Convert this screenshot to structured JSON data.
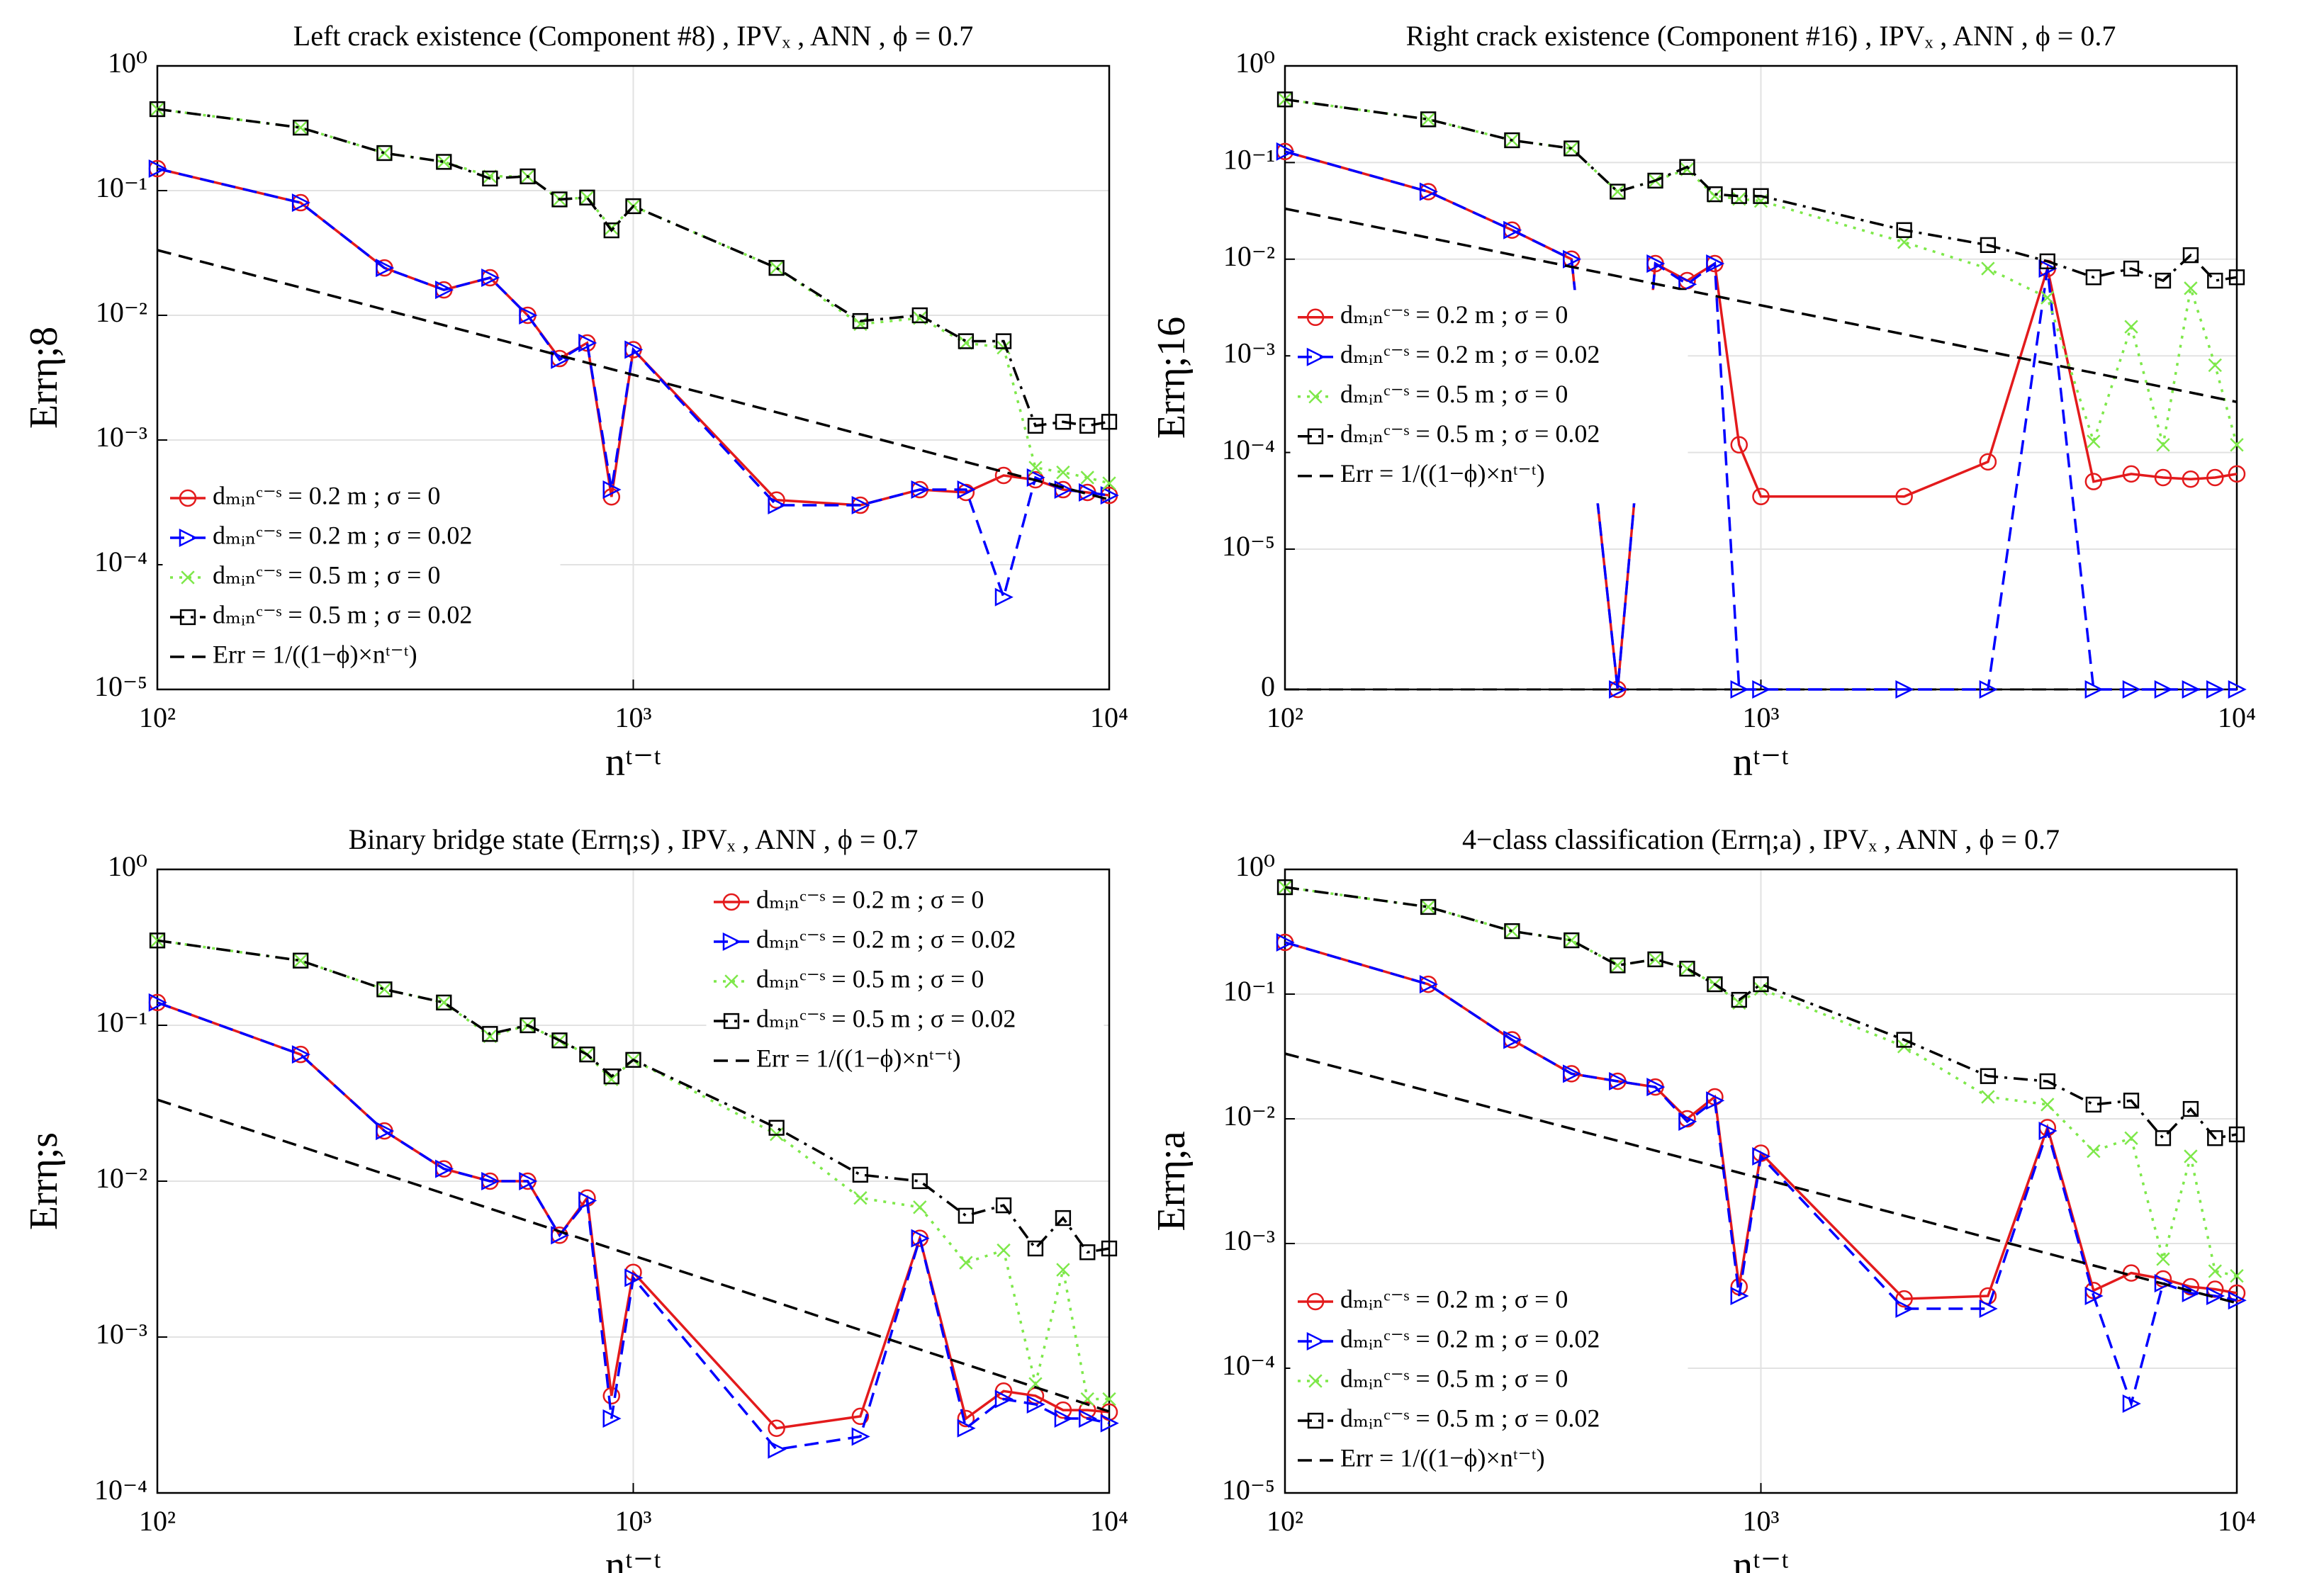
{
  "chart_data": [
    {
      "type": "line",
      "title": "Left crack existence (Component #8) , IPVₓ , ANN , ϕ = 0.7",
      "xlabel": "nᵗ⁻ᵗ",
      "ylabel": "Errη;8",
      "x": [
        100,
        200,
        300,
        400,
        500,
        600,
        700,
        800,
        900,
        1000,
        2000,
        3000,
        4000,
        5000,
        6000,
        7000,
        8000,
        9000,
        10000
      ],
      "xlim": [
        100,
        10000
      ],
      "xticks": [
        {
          "value": 100,
          "label": "10²"
        },
        {
          "value": 1000,
          "label": "10³"
        },
        {
          "value": 10000,
          "label": "10⁴"
        }
      ],
      "ylim": [
        1e-05,
        1
      ],
      "yticks": [
        {
          "value": 1e-05,
          "label": "10⁻⁵"
        },
        {
          "value": 0.0001,
          "label": "10⁻⁴"
        },
        {
          "value": 0.001,
          "label": "10⁻³"
        },
        {
          "value": 0.01,
          "label": "10⁻²"
        },
        {
          "value": 0.1,
          "label": "10⁻¹"
        },
        {
          "value": 1,
          "label": "10⁰"
        }
      ],
      "log_scale": true,
      "grid": true,
      "legend": "lower left",
      "series": [
        {
          "name": "dₘᵢₙᶜ⁻ˢ = 0.2 m ; σ = 0",
          "color": "#e31a1c",
          "marker": "circle",
          "line_style": "-",
          "values": [
            0.15,
            0.08,
            0.024,
            0.016,
            0.02,
            0.01,
            0.0045,
            0.006,
            0.00035,
            0.0053,
            0.00033,
            0.0003,
            0.0004,
            0.00038,
            0.00052,
            0.00048,
            0.0004,
            0.00038,
            0.00036
          ]
        },
        {
          "name": "dₘᵢₙᶜ⁻ˢ = 0.2 m ; σ = 0.02",
          "color": "#0000ff",
          "marker": "triangle-right",
          "line_style": "--",
          "values": [
            0.15,
            0.08,
            0.024,
            0.016,
            0.02,
            0.01,
            0.0044,
            0.006,
            0.0004,
            0.0053,
            0.0003,
            0.0003,
            0.0004,
            0.0004,
            5.5e-05,
            0.0005,
            0.0004,
            0.00038,
            0.00036
          ]
        },
        {
          "name": "dₘᵢₙᶜ⁻ˢ = 0.5 m ; σ = 0",
          "color": "#7ee84a",
          "marker": "x",
          "line_style": ":",
          "values": [
            0.45,
            0.32,
            0.2,
            0.17,
            0.13,
            0.13,
            0.085,
            0.088,
            0.05,
            0.075,
            0.024,
            0.0085,
            0.0095,
            0.006,
            0.0055,
            0.0006,
            0.00055,
            0.0005,
            0.00045
          ]
        },
        {
          "name": "dₘᵢₙᶜ⁻ˢ = 0.5 m ; σ = 0.02",
          "color": "#000000",
          "marker": "square",
          "line_style": "-.",
          "values": [
            0.45,
            0.32,
            0.2,
            0.17,
            0.125,
            0.13,
            0.085,
            0.088,
            0.048,
            0.075,
            0.024,
            0.009,
            0.01,
            0.0062,
            0.0062,
            0.0013,
            0.0014,
            0.0013,
            0.0014
          ]
        },
        {
          "name": "Err = 1/((1−ϕ)×nᵗ⁻ᵗ)",
          "color": "#000000",
          "marker": "none",
          "line_style": "--",
          "values": [
            0.0333,
            0.0167,
            0.0111,
            0.00833,
            0.00667,
            0.00556,
            0.00476,
            0.00417,
            0.0037,
            0.00333,
            0.00167,
            0.00111,
            0.000833,
            0.000667,
            0.000556,
            0.000476,
            0.000417,
            0.00037,
            0.000333
          ]
        }
      ]
    },
    {
      "type": "line",
      "title": "Right crack existence (Component #16) , IPVₓ , ANN , ϕ = 0.7",
      "xlabel": "nᵗ⁻ᵗ",
      "ylabel": "Errη;16",
      "x": [
        100,
        200,
        300,
        400,
        500,
        600,
        700,
        800,
        900,
        1000,
        2000,
        3000,
        4000,
        5000,
        6000,
        7000,
        8000,
        9000,
        10000
      ],
      "xlim": [
        100,
        10000
      ],
      "xticks": [
        {
          "value": 100,
          "label": "10²"
        },
        {
          "value": 1000,
          "label": "10³"
        },
        {
          "value": 10000,
          "label": "10⁴"
        }
      ],
      "ylim": [
        0,
        1
      ],
      "yticks": [
        0,
        {
          "value": 1e-05,
          "label": "10⁻⁵"
        },
        {
          "value": 0.0001,
          "label": "10⁻⁴"
        },
        {
          "value": 0.001,
          "label": "10⁻³"
        },
        {
          "value": 0.01,
          "label": "10⁻²"
        },
        {
          "value": 0.1,
          "label": "10⁻¹"
        },
        {
          "value": 1,
          "label": "10⁰"
        }
      ],
      "log_scale": true,
      "grid": true,
      "legend": "center left",
      "series": [
        {
          "name": "dₘᵢₙᶜ⁻ˢ = 0.2 m ; σ = 0",
          "color": "#e31a1c",
          "marker": "circle",
          "line_style": "-",
          "values": [
            0.13,
            0.05,
            0.02,
            0.01,
            0,
            0.009,
            0.006,
            0.009,
            0.00012,
            3.5e-05,
            3.5e-05,
            8e-05,
            0.008,
            5e-05,
            6e-05,
            5.5e-05,
            5.3e-05,
            5.5e-05,
            6e-05
          ]
        },
        {
          "name": "dₘᵢₙᶜ⁻ˢ = 0.2 m ; σ = 0.02",
          "color": "#0000ff",
          "marker": "triangle-right",
          "line_style": "--",
          "values": [
            0.13,
            0.05,
            0.02,
            0.01,
            0,
            0.009,
            0.0055,
            0.009,
            0,
            0,
            0,
            0,
            0.008,
            0,
            0,
            0,
            0,
            0,
            0
          ]
        },
        {
          "name": "dₘᵢₙᶜ⁻ˢ = 0.5 m ; σ = 0",
          "color": "#7ee84a",
          "marker": "x",
          "line_style": ":",
          "values": [
            0.45,
            0.28,
            0.17,
            0.14,
            0.05,
            0.065,
            0.085,
            0.045,
            0.042,
            0.04,
            0.015,
            0.008,
            0.004,
            0.00013,
            0.002,
            0.00012,
            0.005,
            0.0008,
            0.00012
          ]
        },
        {
          "name": "dₘᵢₙᶜ⁻ˢ = 0.5 m ; σ = 0.02",
          "color": "#000000",
          "marker": "square",
          "line_style": "-.",
          "values": [
            0.45,
            0.28,
            0.17,
            0.14,
            0.05,
            0.065,
            0.09,
            0.047,
            0.045,
            0.045,
            0.02,
            0.014,
            0.0095,
            0.0065,
            0.008,
            0.006,
            0.011,
            0.006,
            0.0065
          ]
        },
        {
          "name": "Err = 1/((1−ϕ)×nᵗ⁻ᵗ)",
          "color": "#000000",
          "marker": "none",
          "line_style": "--",
          "values": [
            0.0333,
            0.0167,
            0.0111,
            0.00833,
            0.00667,
            0.00556,
            0.00476,
            0.00417,
            0.0037,
            0.00333,
            0.00167,
            0.00111,
            0.000833,
            0.000667,
            0.000556,
            0.000476,
            0.000417,
            0.00037,
            0.000333
          ]
        }
      ]
    },
    {
      "type": "line",
      "title": "Binary bridge state (Errη;s) , IPVₓ , ANN , ϕ = 0.7",
      "xlabel": "nᵗ⁻ᵗ",
      "ylabel": "Errη;s",
      "x": [
        100,
        200,
        300,
        400,
        500,
        600,
        700,
        800,
        900,
        1000,
        2000,
        3000,
        4000,
        5000,
        6000,
        7000,
        8000,
        9000,
        10000
      ],
      "xlim": [
        100,
        10000
      ],
      "xticks": [
        {
          "value": 100,
          "label": "10²"
        },
        {
          "value": 1000,
          "label": "10³"
        },
        {
          "value": 10000,
          "label": "10⁴"
        }
      ],
      "ylim": [
        0.0001,
        1
      ],
      "yticks": [
        {
          "value": 0.0001,
          "label": "10⁻⁴"
        },
        {
          "value": 0.001,
          "label": "10⁻³"
        },
        {
          "value": 0.01,
          "label": "10⁻²"
        },
        {
          "value": 0.1,
          "label": "10⁻¹"
        },
        {
          "value": 1,
          "label": "10⁰"
        }
      ],
      "log_scale": true,
      "grid": true,
      "legend": "upper right",
      "series": [
        {
          "name": "dₘᵢₙᶜ⁻ˢ = 0.2 m ; σ = 0",
          "color": "#e31a1c",
          "marker": "circle",
          "line_style": "-",
          "values": [
            0.14,
            0.065,
            0.021,
            0.012,
            0.01,
            0.01,
            0.0045,
            0.0078,
            0.00042,
            0.0026,
            0.00026,
            0.00031,
            0.0043,
            0.0003,
            0.00045,
            0.00042,
            0.00034,
            0.00034,
            0.00033
          ]
        },
        {
          "name": "dₘᵢₙᶜ⁻ˢ = 0.2 m ; σ = 0.02",
          "color": "#0000ff",
          "marker": "triangle-right",
          "line_style": "--",
          "values": [
            0.14,
            0.065,
            0.021,
            0.012,
            0.01,
            0.01,
            0.0045,
            0.0075,
            0.0003,
            0.0024,
            0.00019,
            0.00023,
            0.0043,
            0.00026,
            0.0004,
            0.00037,
            0.0003,
            0.0003,
            0.00028
          ]
        },
        {
          "name": "dₘᵢₙᶜ⁻ˢ = 0.5 m ; σ = 0",
          "color": "#7ee84a",
          "marker": "x",
          "line_style": ":",
          "values": [
            0.35,
            0.26,
            0.17,
            0.14,
            0.085,
            0.1,
            0.08,
            0.065,
            0.045,
            0.06,
            0.02,
            0.0078,
            0.0068,
            0.003,
            0.0036,
            0.0005,
            0.0027,
            0.0004,
            0.0004
          ]
        },
        {
          "name": "dₘᵢₙᶜ⁻ˢ = 0.5 m ; σ = 0.02",
          "color": "#000000",
          "marker": "square",
          "line_style": "-.",
          "values": [
            0.35,
            0.26,
            0.17,
            0.14,
            0.088,
            0.1,
            0.08,
            0.065,
            0.047,
            0.06,
            0.022,
            0.011,
            0.01,
            0.006,
            0.007,
            0.0037,
            0.0058,
            0.0035,
            0.0037
          ]
        },
        {
          "name": "Err = 1/((1−ϕ)×nᵗ⁻ᵗ)",
          "color": "#000000",
          "marker": "none",
          "line_style": "--",
          "values": [
            0.0333,
            0.0167,
            0.0111,
            0.00833,
            0.00667,
            0.00556,
            0.00476,
            0.00417,
            0.0037,
            0.00333,
            0.00167,
            0.00111,
            0.000833,
            0.000667,
            0.000556,
            0.000476,
            0.000417,
            0.00037,
            0.000333
          ]
        }
      ]
    },
    {
      "type": "line",
      "title": "4−class classification (Errη;a) , IPVₓ , ANN , ϕ = 0.7",
      "xlabel": "nᵗ⁻ᵗ",
      "ylabel": "Errη;a",
      "x": [
        100,
        200,
        300,
        400,
        500,
        600,
        700,
        800,
        900,
        1000,
        2000,
        3000,
        4000,
        5000,
        6000,
        7000,
        8000,
        9000,
        10000
      ],
      "xlim": [
        100,
        10000
      ],
      "xticks": [
        {
          "value": 100,
          "label": "10²"
        },
        {
          "value": 1000,
          "label": "10³"
        },
        {
          "value": 10000,
          "label": "10⁴"
        }
      ],
      "ylim": [
        1e-05,
        1
      ],
      "yticks": [
        {
          "value": 1e-05,
          "label": "10⁻⁵"
        },
        {
          "value": 0.0001,
          "label": "10⁻⁴"
        },
        {
          "value": 0.001,
          "label": "10⁻³"
        },
        {
          "value": 0.01,
          "label": "10⁻²"
        },
        {
          "value": 0.1,
          "label": "10⁻¹"
        },
        {
          "value": 1,
          "label": "10⁰"
        }
      ],
      "log_scale": true,
      "grid": true,
      "legend": "lower left",
      "series": [
        {
          "name": "dₘᵢₙᶜ⁻ˢ = 0.2 m ; σ = 0",
          "color": "#e31a1c",
          "marker": "circle",
          "line_style": "-",
          "values": [
            0.26,
            0.12,
            0.043,
            0.023,
            0.02,
            0.018,
            0.01,
            0.015,
            0.00045,
            0.0053,
            0.00036,
            0.00038,
            0.0085,
            0.00042,
            0.00058,
            0.00052,
            0.00045,
            0.00043,
            0.0004
          ]
        },
        {
          "name": "dₘᵢₙᶜ⁻ˢ = 0.2 m ; σ = 0.02",
          "color": "#0000ff",
          "marker": "triangle-right",
          "line_style": "--",
          "values": [
            0.26,
            0.12,
            0.043,
            0.023,
            0.02,
            0.018,
            0.0095,
            0.014,
            0.00038,
            0.005,
            0.0003,
            0.0003,
            0.008,
            0.00038,
            5.2e-05,
            0.00048,
            0.0004,
            0.00038,
            0.00035
          ]
        },
        {
          "name": "dₘᵢₙᶜ⁻ˢ = 0.5 m ; σ = 0",
          "color": "#7ee84a",
          "marker": "x",
          "line_style": ":",
          "values": [
            0.72,
            0.5,
            0.32,
            0.27,
            0.17,
            0.19,
            0.16,
            0.12,
            0.085,
            0.11,
            0.038,
            0.015,
            0.013,
            0.0055,
            0.007,
            0.00075,
            0.005,
            0.0006,
            0.00055
          ]
        },
        {
          "name": "dₘᵢₙᶜ⁻ˢ = 0.5 m ; σ = 0.02",
          "color": "#000000",
          "marker": "square",
          "line_style": "-.",
          "values": [
            0.72,
            0.5,
            0.32,
            0.27,
            0.17,
            0.19,
            0.16,
            0.12,
            0.09,
            0.12,
            0.043,
            0.022,
            0.02,
            0.013,
            0.014,
            0.007,
            0.012,
            0.007,
            0.0075
          ]
        },
        {
          "name": "Err = 1/((1−ϕ)×nᵗ⁻ᵗ)",
          "color": "#000000",
          "marker": "none",
          "line_style": "--",
          "values": [
            0.0333,
            0.0167,
            0.0111,
            0.00833,
            0.00667,
            0.00556,
            0.00476,
            0.00417,
            0.0037,
            0.00333,
            0.00167,
            0.00111,
            0.000833,
            0.000667,
            0.000556,
            0.000476,
            0.000417,
            0.00037,
            0.000333
          ]
        }
      ]
    }
  ]
}
